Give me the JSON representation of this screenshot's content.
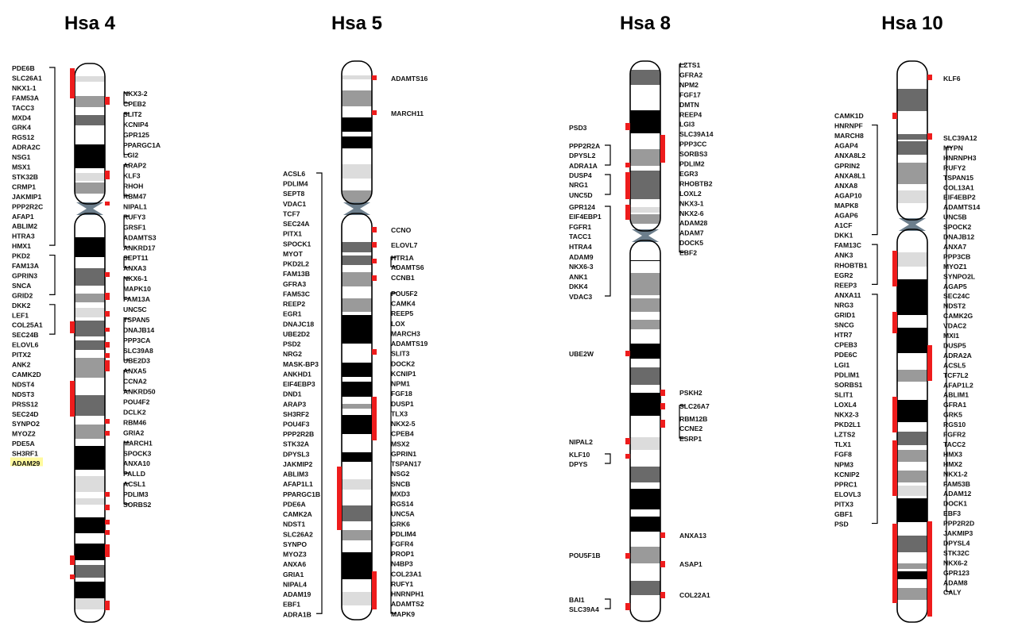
{
  "panels": [
    {
      "title": "Hsa 4",
      "left_genes": [
        "PDE6B",
        "SLC26A1",
        "NKX1-1",
        "FAM53A",
        "TACC3",
        "MXD4",
        "GRK4",
        "RGS12",
        "ADRA2C",
        "NSG1",
        "MSX1",
        "STK32B",
        "CRMP1",
        "JAKMIP1",
        "PPP2R2C",
        "AFAP1",
        "ABLIM2",
        "HTRA3",
        "HMX1",
        "PKD2",
        "FAM13A",
        "GPRIN3",
        "SNCA",
        "GRID2",
        "DKK2",
        "LEF1",
        "COL25A1",
        "SEC24B",
        "ELOVL6",
        "PITX2",
        "ANK2",
        "CAMK2D",
        "NDST4",
        "NDST3",
        "PRSS12",
        "SEC24D",
        "SYNPO2",
        "MYOZ2",
        "PDE5A",
        "SH3RF1",
        "ADAM29"
      ],
      "highlighted_gene": "ADAM29",
      "right_genes": [
        "NKX3-2",
        "CPEB2",
        "SLIT2",
        "KCNIP4",
        "GPR125",
        "PPARGC1A",
        "LGI2",
        "ARAP2",
        "KLF3",
        "RHOH",
        "RBM47",
        "NIPAL1",
        "RUFY3",
        "GRSF1",
        "ADAMTS3",
        "ANKRD17",
        "SEPT11",
        "ANXA3",
        "NKX6-1",
        "MAPK10",
        "FAM13A",
        "UNC5C",
        "TSPAN5",
        "DNAJB14",
        "PPP3CA",
        "SLC39A8",
        "UBE2D3",
        "ANXA5",
        "CCNA2",
        "ANKRD50",
        "POU4F2",
        "DCLK2",
        "RBM46",
        "GRIA2",
        "MARCH1",
        "SPOCK3",
        "ANXA10",
        "PALLD",
        "ACSL1",
        "PDLIM3",
        "SORBS2"
      ]
    },
    {
      "title": "Hsa 5",
      "left_genes": [
        "ACSL6",
        "PDLIM4",
        "SEPT8",
        "VDAC1",
        "TCF7",
        "SEC24A",
        "PITX1",
        "SPOCK1",
        "MYOT",
        "PKD2L2",
        "FAM13B",
        "GFRA3",
        "FAM53C",
        "REEP2",
        "EGR1",
        "DNAJC18",
        "UBE2D2",
        "PSD2",
        "NRG2",
        "MASK-BP3",
        "ANKHD1",
        "EIF4EBP3",
        "DND1",
        "ARAP3",
        "SH3RF2",
        "POU4F3",
        "PPP2R2B",
        "STK32A",
        "DPYSL3",
        "JAKMIP2",
        "ABLIM3",
        "AFAP1L1",
        "PPARGC1B",
        "PDE6A",
        "CAMK2A",
        "NDST1",
        "SLC26A2",
        "SYNPO",
        "MYOZ3",
        "ANXA6",
        "GRIA1",
        "NIPAL4",
        "ADAM19",
        "EBF1",
        "ADRA1B"
      ],
      "right_genes": [
        "ADAMTS16",
        "MARCH11",
        "CCNO",
        "ELOVL7",
        "HTR1A",
        "ADAMTS6",
        "CCNB1",
        "POU5F2",
        "CAMK4",
        "REEP5",
        "LOX",
        "MARCH3",
        "ADAMTS19",
        "SLIT3",
        "DOCK2",
        "KCNIP1",
        "NPM1",
        "FGF18",
        "DUSP1",
        "TLX3",
        "NKX2-5",
        "CPEB4",
        "MSX2",
        "GPRIN1",
        "TSPAN17",
        "NSG2",
        "SNCB",
        "MXD3",
        "RGS14",
        "UNC5A",
        "GRK6",
        "PDLIM4",
        "FGFR4",
        "PROP1",
        "N4BP3",
        "COL23A1",
        "RUFY1",
        "HNRNPH1",
        "ADAMTS2",
        "MAPK9"
      ]
    },
    {
      "title": "Hsa 8",
      "left_genes": [
        "PSD3",
        "PPP2R2A",
        "DPYSL2",
        "ADRA1A",
        "DUSP4",
        "NRG1",
        "UNC5D",
        "GPR124",
        "EIF4EBP1",
        "FGFR1",
        "TACC1",
        "HTRA4",
        "ADAM9",
        "NKX6-3",
        "ANK1",
        "DKK4",
        "VDAC3",
        "UBE2W",
        "NIPAL2",
        "KLF10",
        "DPYS",
        "POU5F1B",
        "BAI1",
        "SLC39A4"
      ],
      "right_genes": [
        "LZTS1",
        "GFRA2",
        "NPM2",
        "FGF17",
        "DMTN",
        "REEP4",
        "LGI3",
        "SLC39A14",
        "PPP3CC",
        "SORBS3",
        "PDLIM2",
        "EGR3",
        "RHOBTB2",
        "LOXL2",
        "NKX3-1",
        "NKX2-6",
        "ADAM28",
        "ADAM7",
        "DOCK5",
        "EBF2",
        "PSKH2",
        "SLC26A7",
        "RBM12B",
        "CCNE2",
        "ESRP1",
        "ANXA13",
        "ASAP1",
        "COL22A1"
      ]
    },
    {
      "title": "Hsa 10",
      "left_genes": [
        "CAMK1D",
        "HNRNPF",
        "MARCH8",
        "AGAP4",
        "ANXA8L2",
        "GPRIN2",
        "ANXA8L1",
        "ANXA8",
        "AGAP10",
        "MAPK8",
        "AGAP6",
        "A1CF",
        "DKK1",
        "FAM13C",
        "ANK3",
        "RHOBTB1",
        "EGR2",
        "REEP3",
        "ANXA11",
        "NRG3",
        "GRID1",
        "SNCG",
        "HTR7",
        "CPEB3",
        "PDE6C",
        "LGI1",
        "PDLIM1",
        "SORBS1",
        "SLIT1",
        "LOXL4",
        "NKX2-3",
        "PKD2L1",
        "LZTS2",
        "TLX1",
        "FGF8",
        "NPM3",
        "KCNIP2",
        "PPRC1",
        "ELOVL3",
        "PITX3",
        "GBF1",
        "PSD"
      ],
      "right_genes": [
        "KLF6",
        "SLC39A12",
        "MYPN",
        "HNRNPH3",
        "RUFY2",
        "TSPAN15",
        "COL13A1",
        "EIF4EBP2",
        "ADAMTS14",
        "UNC5B",
        "SPOCK2",
        "DNAJB12",
        "ANXA7",
        "PPP3CB",
        "MYOZ1",
        "SYNPO2L",
        "AGAP5",
        "SEC24C",
        "NDST2",
        "CAMK2G",
        "VDAC2",
        "MXI1",
        "DUSP5",
        "ADRA2A",
        "ACSL5",
        "TCF7L2",
        "AFAP1L2",
        "ABLIM1",
        "GFRA1",
        "GRK5",
        "RGS10",
        "FGFR2",
        "TACC2",
        "HMX3",
        "HMX2",
        "NKX1-2",
        "FAM53B",
        "ADAM12",
        "DOCK1",
        "EBF3",
        "PPP2R2D",
        "JAKMIP3",
        "DPYSL4",
        "STK32C",
        "NKX6-2",
        "GPR123",
        "ADAM8",
        "CALY"
      ]
    }
  ],
  "colors": {
    "marker": "#ee1c1c",
    "centromere": "#6c7e8c",
    "highlight": "#fffa9e"
  }
}
